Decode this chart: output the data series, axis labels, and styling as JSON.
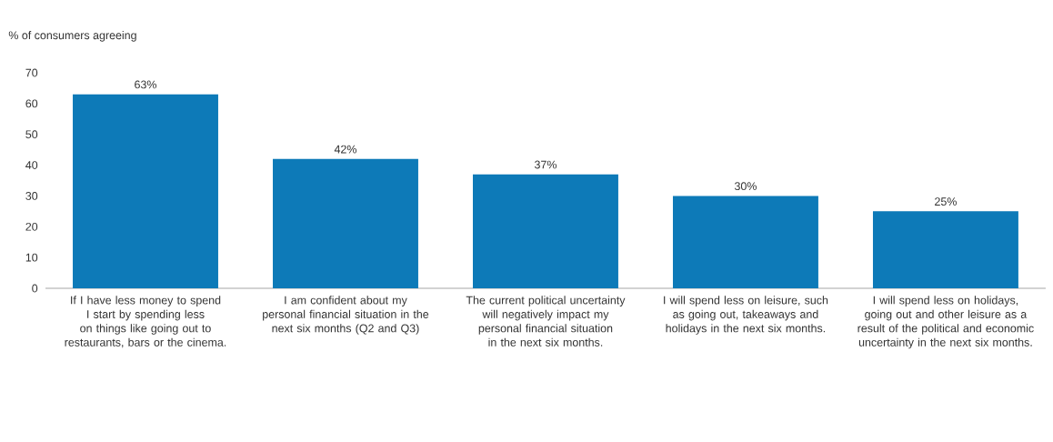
{
  "chart_data": {
    "type": "bar",
    "ylabel": "% of consumers agreeing",
    "categories": [
      "If I have less money to spend I start by spending less on things like going out to restaurants, bars or the cinema.",
      "I am confident about my personal financial situation in the next six months (Q2 and Q3)",
      "The current political uncertainty will negatively impact my personal financial situation in the next six months.",
      "I will spend less on leisure, such as going out, takeaways and holidays in the next six months.",
      "I will spend less on holidays, going out and other leisure as a result of the political and economic uncertainty in the next six months."
    ],
    "values": [
      63,
      42,
      37,
      30,
      25
    ],
    "value_labels": [
      "63%",
      "42%",
      "37%",
      "30%",
      "25%"
    ],
    "color": "#0d7ab8",
    "ylim": [
      0,
      70
    ],
    "yticks": [
      0,
      10,
      20,
      30,
      40,
      50,
      60,
      70
    ]
  }
}
